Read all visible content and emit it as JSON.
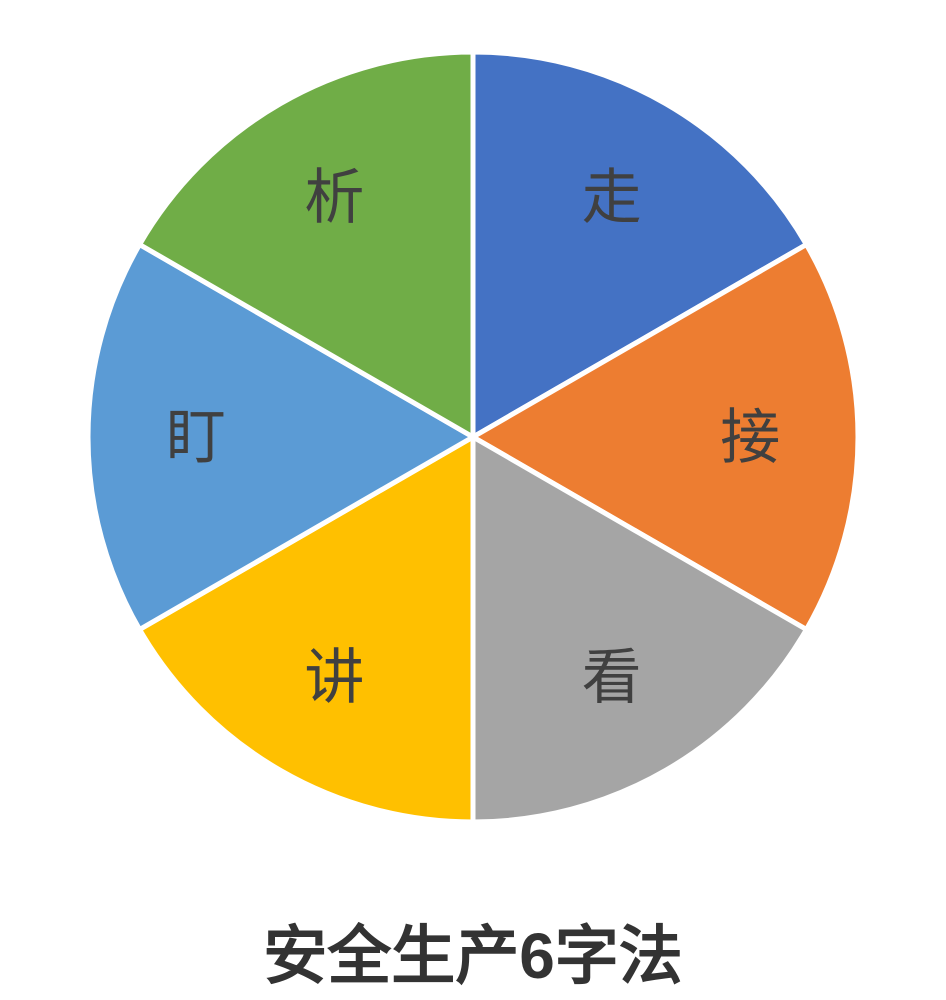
{
  "chart_data": {
    "type": "pie",
    "title": "安全生产6字法",
    "categories": [
      "走",
      "接",
      "看",
      "讲",
      "盯",
      "析"
    ],
    "values": [
      1,
      1,
      1,
      1,
      1,
      1
    ],
    "percentages": [
      16.67,
      16.67,
      16.67,
      16.67,
      16.67,
      16.67
    ],
    "colors": [
      "#4472C4",
      "#ED7D31",
      "#A5A5A5",
      "#FFC000",
      "#5B9BD5",
      "#70AD47"
    ],
    "label_color": "#404040",
    "title_color": "#333333",
    "separator_color": "#ffffff",
    "start_angle_deg": 0,
    "direction": "clockwise",
    "legend": "none",
    "label_position": "inside",
    "background": "#ffffff"
  }
}
